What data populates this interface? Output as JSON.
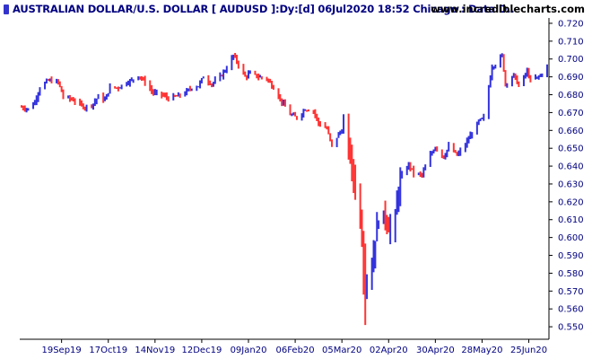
{
  "header": {
    "title": "AUSTRALIAN DOLLAR/U.S. DOLLAR [ AUDUSD ]:Dy:[d]  06Jul2020 18:52 Chicago : Data D..",
    "site": "www.incrediblecharts.com"
  },
  "colors": {
    "up": "#3333dd",
    "down": "#ff3333",
    "axis_text": "#000080",
    "axis_line": "#000000"
  },
  "chart_data": {
    "type": "ohlc",
    "title": "AUSTRALIAN DOLLAR/U.S. DOLLAR [ AUDUSD ]:Dy:[d]",
    "xlabel": "",
    "ylabel": "",
    "ylim": [
      0.543,
      0.723
    ],
    "yticks": [
      "0.720",
      "0.710",
      "0.700",
      "0.690",
      "0.680",
      "0.670",
      "0.660",
      "0.650",
      "0.640",
      "0.630",
      "0.620",
      "0.610",
      "0.600",
      "0.590",
      "0.580",
      "0.570",
      "0.560",
      "0.550"
    ],
    "xticks": [
      "19Sep19",
      "17Oct19",
      "14Nov19",
      "12Dec19",
      "09Jan20",
      "06Feb20",
      "05Mar20",
      "02Apr20",
      "30Apr20",
      "28May20",
      "25Jun20"
    ],
    "up_color": "blue",
    "down_color": "red",
    "path_points": [
      [
        "2019-08-26",
        0.673
      ],
      [
        "2019-08-30",
        0.672
      ],
      [
        "2019-09-03",
        0.676
      ],
      [
        "2019-09-06",
        0.684
      ],
      [
        "2019-09-11",
        0.688
      ],
      [
        "2019-09-17",
        0.687
      ],
      [
        "2019-09-20",
        0.679
      ],
      [
        "2019-09-26",
        0.677
      ],
      [
        "2019-10-01",
        0.674
      ],
      [
        "2019-10-03",
        0.673
      ],
      [
        "2019-10-08",
        0.675
      ],
      [
        "2019-10-11",
        0.679
      ],
      [
        "2019-10-15",
        0.677
      ],
      [
        "2019-10-18",
        0.684
      ],
      [
        "2019-10-23",
        0.684
      ],
      [
        "2019-10-28",
        0.687
      ],
      [
        "2019-10-31",
        0.688
      ],
      [
        "2019-11-04",
        0.691
      ],
      [
        "2019-11-08",
        0.687
      ],
      [
        "2019-11-13",
        0.681
      ],
      [
        "2019-11-18",
        0.68
      ],
      [
        "2019-11-22",
        0.678
      ],
      [
        "2019-11-27",
        0.679
      ],
      [
        "2019-12-02",
        0.681
      ],
      [
        "2019-12-06",
        0.684
      ],
      [
        "2019-12-10",
        0.685
      ],
      [
        "2019-12-13",
        0.69
      ],
      [
        "2019-12-18",
        0.686
      ],
      [
        "2019-12-23",
        0.69
      ],
      [
        "2019-12-27",
        0.695
      ],
      [
        "2019-12-31",
        0.702
      ],
      [
        "2020-01-03",
        0.697
      ],
      [
        "2020-01-07",
        0.69
      ],
      [
        "2020-01-10",
        0.692
      ],
      [
        "2020-01-15",
        0.69
      ],
      [
        "2020-01-20",
        0.689
      ],
      [
        "2020-01-24",
        0.684
      ],
      [
        "2020-01-29",
        0.676
      ],
      [
        "2020-02-03",
        0.669
      ],
      [
        "2020-02-07",
        0.667
      ],
      [
        "2020-02-12",
        0.672
      ],
      [
        "2020-02-17",
        0.671
      ],
      [
        "2020-02-20",
        0.664
      ],
      [
        "2020-02-25",
        0.661
      ],
      [
        "2020-02-28",
        0.651
      ],
      [
        "2020-03-03",
        0.658
      ],
      [
        "2020-03-06",
        0.661
      ],
      [
        "2020-03-09",
        0.652
      ],
      [
        "2020-03-12",
        0.633
      ],
      [
        "2020-03-16",
        0.611
      ],
      [
        "2020-03-19",
        0.576
      ],
      [
        "2020-03-23",
        0.582
      ],
      [
        "2020-03-26",
        0.607
      ],
      [
        "2020-03-30",
        0.614
      ],
      [
        "2020-04-02",
        0.604
      ],
      [
        "2020-04-06",
        0.612
      ],
      [
        "2020-04-09",
        0.633
      ],
      [
        "2020-04-14",
        0.641
      ],
      [
        "2020-04-17",
        0.636
      ],
      [
        "2020-04-22",
        0.635
      ],
      [
        "2020-04-27",
        0.646
      ],
      [
        "2020-04-30",
        0.651
      ],
      [
        "2020-05-05",
        0.645
      ],
      [
        "2020-05-08",
        0.651
      ],
      [
        "2020-05-13",
        0.646
      ],
      [
        "2020-05-18",
        0.652
      ],
      [
        "2020-05-21",
        0.657
      ],
      [
        "2020-05-26",
        0.665
      ],
      [
        "2020-05-29",
        0.667
      ],
      [
        "2020-06-03",
        0.696
      ],
      [
        "2020-06-05",
        0.697
      ],
      [
        "2020-06-09",
        0.702
      ],
      [
        "2020-06-11",
        0.686
      ],
      [
        "2020-06-16",
        0.691
      ],
      [
        "2020-06-19",
        0.685
      ],
      [
        "2020-06-24",
        0.693
      ],
      [
        "2020-06-26",
        0.688
      ],
      [
        "2020-07-01",
        0.69
      ],
      [
        "2020-07-06",
        0.695
      ]
    ]
  }
}
